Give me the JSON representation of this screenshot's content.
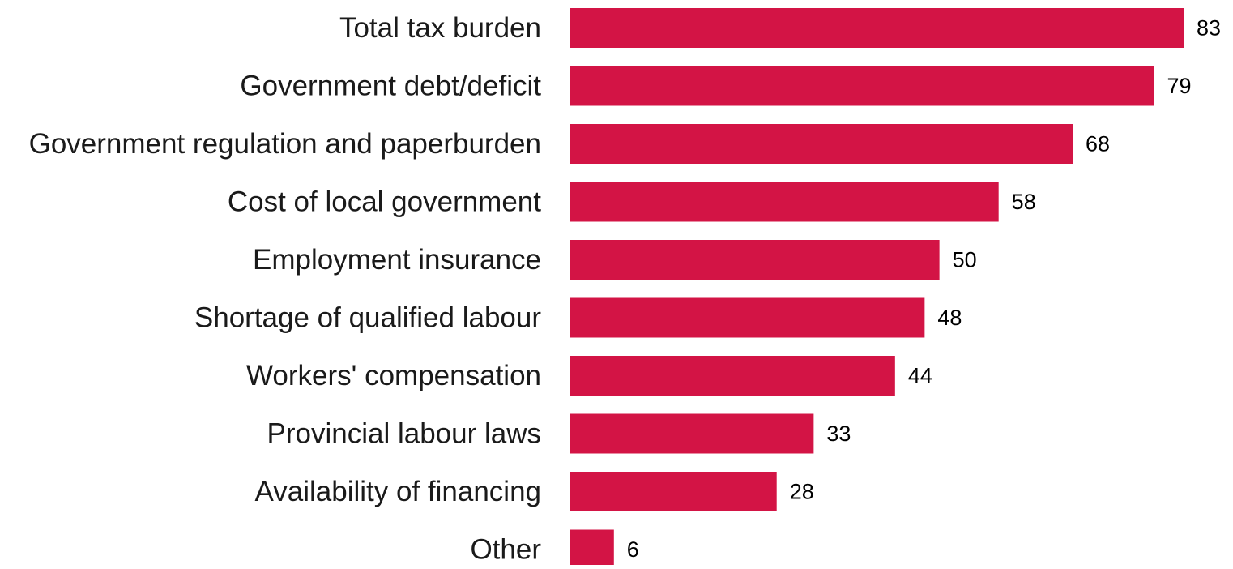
{
  "colors": {
    "bar": "#d31445",
    "category_text": "#1a1a1a",
    "value_text": "#000000",
    "background": "#ffffff"
  },
  "chart_data": {
    "type": "bar",
    "orientation": "horizontal",
    "categories": [
      "Total tax burden",
      "Government debt/deficit",
      "Government regulation and paperburden",
      "Cost of local government",
      "Employment insurance",
      "Shortage of qualified labour",
      "Workers' compensation",
      "Provincial labour laws",
      "Availability of financing",
      "Other"
    ],
    "values": [
      83,
      79,
      68,
      58,
      50,
      48,
      44,
      33,
      28,
      6
    ],
    "title": "",
    "xlabel": "",
    "ylabel": "",
    "xlim": [
      0,
      83
    ],
    "grid": false,
    "legend": "none",
    "data_labels": true
  }
}
